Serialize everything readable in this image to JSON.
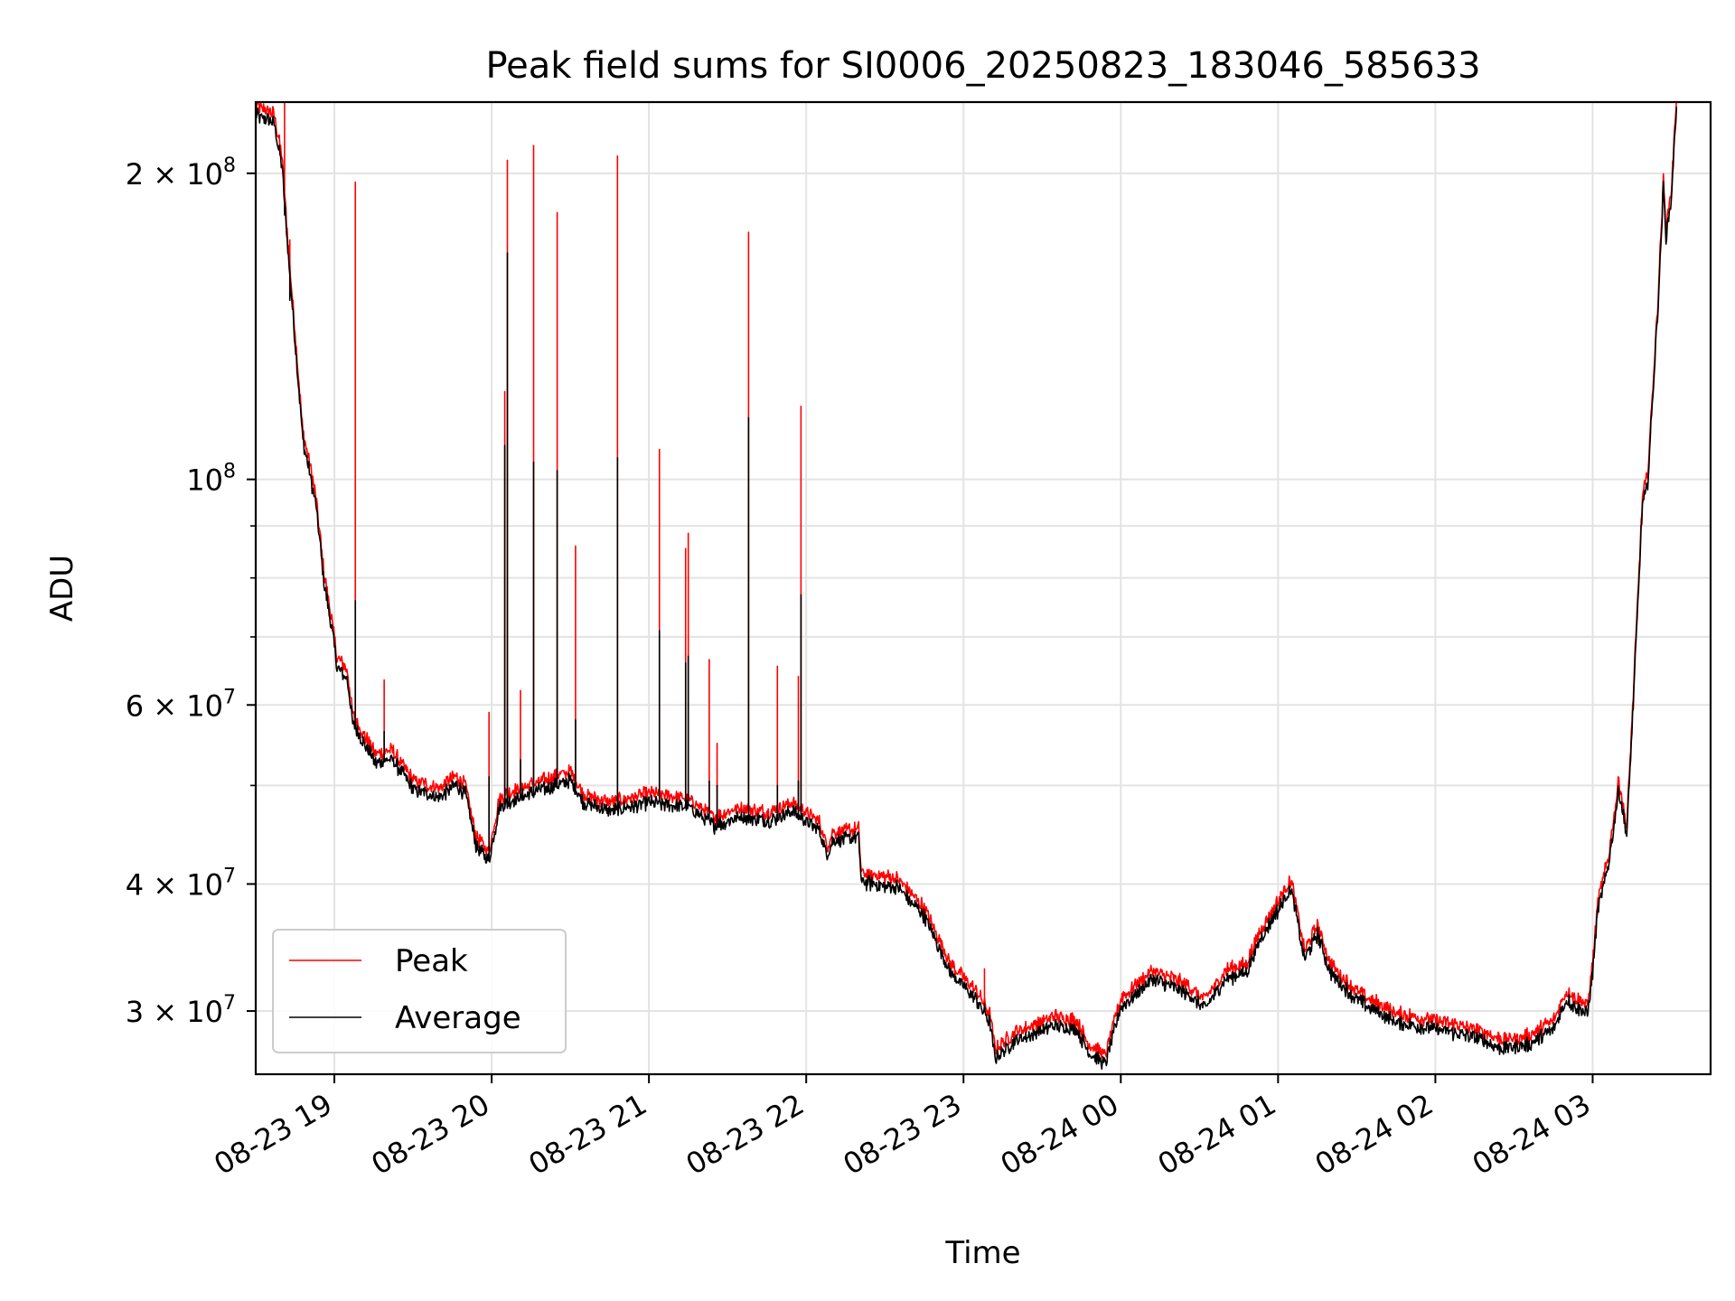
{
  "chart_data": {
    "type": "line",
    "title": "Peak field sums for SI0006_20250823_183046_585633",
    "xlabel": "Time",
    "ylabel": "ADU",
    "yscale": "log",
    "xlim": [
      "2025-08-23 18:30",
      "2025-08-24 03:45"
    ],
    "ylim": [
      26000000,
      235000000
    ],
    "xticks": [
      {
        "time": "2025-08-23 19:00",
        "label": "08-23 19"
      },
      {
        "time": "2025-08-23 20:00",
        "label": "08-23 20"
      },
      {
        "time": "2025-08-23 21:00",
        "label": "08-23 21"
      },
      {
        "time": "2025-08-23 22:00",
        "label": "08-23 22"
      },
      {
        "time": "2025-08-23 23:00",
        "label": "08-23 23"
      },
      {
        "time": "2025-08-24 00:00",
        "label": "08-24 00"
      },
      {
        "time": "2025-08-24 01:00",
        "label": "08-24 01"
      },
      {
        "time": "2025-08-24 02:00",
        "label": "08-24 02"
      },
      {
        "time": "2025-08-24 03:00",
        "label": "08-24 03"
      }
    ],
    "yticks": [
      {
        "value": 30000000,
        "label": "3 × 10",
        "exp": "7"
      },
      {
        "value": 40000000,
        "label": "4 × 10",
        "exp": "7"
      },
      {
        "value": 60000000,
        "label": "6 × 10",
        "exp": "7"
      },
      {
        "value": 100000000,
        "label": "10",
        "exp": "8"
      },
      {
        "value": 200000000,
        "label": "2 × 10",
        "exp": "8"
      }
    ],
    "yminor": [
      50000000,
      70000000,
      80000000,
      90000000
    ],
    "grid": true,
    "legend_position": "lower-left",
    "series": [
      {
        "name": "Peak",
        "color": "#ff0000",
        "points": [
          [
            "2025-08-23 18:30",
            230000000
          ],
          [
            "2025-08-23 18:37",
            226000000
          ],
          [
            "2025-08-23 18:40",
            205000000
          ],
          [
            "2025-08-23 18:43",
            160000000
          ],
          [
            "2025-08-23 18:45",
            138000000
          ],
          [
            "2025-08-23 18:48",
            110000000
          ],
          [
            "2025-08-23 18:50",
            104000000
          ],
          [
            "2025-08-23 18:53",
            95000000
          ],
          [
            "2025-08-23 18:56",
            80000000
          ],
          [
            "2025-08-23 18:59",
            72000000
          ],
          [
            "2025-08-23 19:01",
            66000000
          ],
          [
            "2025-08-23 19:05",
            64000000
          ],
          [
            "2025-08-23 19:07",
            58000000
          ],
          [
            "2025-08-23 19:12",
            55000000
          ],
          [
            "2025-08-23 19:16",
            53000000
          ],
          [
            "2025-08-23 19:22",
            53500000
          ],
          [
            "2025-08-23 19:30",
            50000000
          ],
          [
            "2025-08-23 19:40",
            49000000
          ],
          [
            "2025-08-23 19:46",
            50500000
          ],
          [
            "2025-08-23 19:50",
            49500000
          ],
          [
            "2025-08-23 19:54",
            44000000
          ],
          [
            "2025-08-23 19:59",
            42500000
          ],
          [
            "2025-08-23 20:03",
            48000000
          ],
          [
            "2025-08-23 20:10",
            49000000
          ],
          [
            "2025-08-23 20:20",
            50000000
          ],
          [
            "2025-08-23 20:30",
            51000000
          ],
          [
            "2025-08-23 20:35",
            48500000
          ],
          [
            "2025-08-23 20:45",
            47500000
          ],
          [
            "2025-08-23 21:00",
            48500000
          ],
          [
            "2025-08-23 21:15",
            48000000
          ],
          [
            "2025-08-23 21:25",
            46000000
          ],
          [
            "2025-08-23 21:35",
            47000000
          ],
          [
            "2025-08-23 21:45",
            46500000
          ],
          [
            "2025-08-23 21:55",
            47500000
          ],
          [
            "2025-08-23 22:05",
            45500000
          ],
          [
            "2025-08-23 22:08",
            43000000
          ],
          [
            "2025-08-23 22:10",
            44500000
          ],
          [
            "2025-08-23 22:20",
            44800000
          ],
          [
            "2025-08-23 22:21",
            40500000
          ],
          [
            "2025-08-23 22:35",
            40000000
          ],
          [
            "2025-08-23 22:45",
            37500000
          ],
          [
            "2025-08-23 22:55",
            33000000
          ],
          [
            "2025-08-23 23:05",
            31000000
          ],
          [
            "2025-08-23 23:10",
            29500000
          ],
          [
            "2025-08-23 23:12",
            27200000
          ],
          [
            "2025-08-23 23:20",
            28300000
          ],
          [
            "2025-08-23 23:35",
            29300000
          ],
          [
            "2025-08-23 23:43",
            29000000
          ],
          [
            "2025-08-23 23:48",
            27500000
          ],
          [
            "2025-08-23 23:54",
            26800000
          ],
          [
            "2025-08-24 00:00",
            30500000
          ],
          [
            "2025-08-24 00:12",
            32500000
          ],
          [
            "2025-08-24 00:25",
            31500000
          ],
          [
            "2025-08-24 00:32",
            30400000
          ],
          [
            "2025-08-24 00:40",
            32500000
          ],
          [
            "2025-08-24 00:48",
            33000000
          ],
          [
            "2025-08-24 00:53",
            35500000
          ],
          [
            "2025-08-24 01:00",
            38000000
          ],
          [
            "2025-08-24 01:05",
            40000000
          ],
          [
            "2025-08-24 01:10",
            34000000
          ],
          [
            "2025-08-24 01:15",
            36000000
          ],
          [
            "2025-08-24 01:20",
            33000000
          ],
          [
            "2025-08-24 01:30",
            31000000
          ],
          [
            "2025-08-24 01:45",
            29500000
          ],
          [
            "2025-08-24 02:00",
            29000000
          ],
          [
            "2025-08-24 02:15",
            28500000
          ],
          [
            "2025-08-24 02:25",
            27800000
          ],
          [
            "2025-08-24 02:35",
            28000000
          ],
          [
            "2025-08-24 02:45",
            29000000
          ],
          [
            "2025-08-24 02:50",
            31000000
          ],
          [
            "2025-08-24 02:58",
            30000000
          ],
          [
            "2025-08-24 03:00",
            33000000
          ],
          [
            "2025-08-24 03:02",
            38000000
          ],
          [
            "2025-08-24 03:06",
            42000000
          ],
          [
            "2025-08-24 03:10",
            50000000
          ],
          [
            "2025-08-24 03:13",
            45000000
          ],
          [
            "2025-08-24 03:15",
            57000000
          ],
          [
            "2025-08-24 03:19",
            95000000
          ],
          [
            "2025-08-24 03:21",
            100000000
          ],
          [
            "2025-08-24 03:25",
            150000000
          ],
          [
            "2025-08-24 03:27",
            195000000
          ],
          [
            "2025-08-24 03:28",
            175000000
          ],
          [
            "2025-08-24 03:30",
            190000000
          ],
          [
            "2025-08-24 03:32",
            235000000
          ]
        ],
        "spikes": [
          [
            "2025-08-23 18:41",
            235000000
          ],
          [
            "2025-08-23 18:43",
            172000000
          ],
          [
            "2025-08-23 19:08",
            196000000
          ],
          [
            "2025-08-23 19:19",
            63500000
          ],
          [
            "2025-08-23 19:59",
            59000000
          ],
          [
            "2025-08-23 20:05",
            122000000
          ],
          [
            "2025-08-23 20:06",
            206000000
          ],
          [
            "2025-08-23 20:11",
            62000000
          ],
          [
            "2025-08-23 20:16",
            213000000
          ],
          [
            "2025-08-23 20:25",
            183000000
          ],
          [
            "2025-08-23 20:32",
            86000000
          ],
          [
            "2025-08-23 20:48",
            208000000
          ],
          [
            "2025-08-23 21:04",
            107000000
          ],
          [
            "2025-08-23 21:14",
            85500000
          ],
          [
            "2025-08-23 21:15",
            88500000
          ],
          [
            "2025-08-23 21:23",
            66500000
          ],
          [
            "2025-08-23 21:26",
            55000000
          ],
          [
            "2025-08-23 21:38",
            175000000
          ],
          [
            "2025-08-23 21:49",
            65500000
          ],
          [
            "2025-08-23 21:57",
            64000000
          ],
          [
            "2025-08-23 21:58",
            118000000
          ],
          [
            "2025-08-23 23:08",
            33000000
          ]
        ]
      },
      {
        "name": "Average",
        "color": "#000000",
        "spikes": [
          [
            "2025-08-23 18:41",
            182000000
          ],
          [
            "2025-08-23 18:43",
            150000000
          ],
          [
            "2025-08-23 19:08",
            76000000
          ],
          [
            "2025-08-23 19:19",
            56500000
          ],
          [
            "2025-08-23 19:59",
            51000000
          ],
          [
            "2025-08-23 20:05",
            108000000
          ],
          [
            "2025-08-23 20:06",
            167000000
          ],
          [
            "2025-08-23 20:11",
            53000000
          ],
          [
            "2025-08-23 20:16",
            104000000
          ],
          [
            "2025-08-23 20:25",
            102000000
          ],
          [
            "2025-08-23 20:32",
            58000000
          ],
          [
            "2025-08-23 20:48",
            105000000
          ],
          [
            "2025-08-23 21:04",
            71000000
          ],
          [
            "2025-08-23 21:14",
            66000000
          ],
          [
            "2025-08-23 21:15",
            67000000
          ],
          [
            "2025-08-23 21:23",
            50500000
          ],
          [
            "2025-08-23 21:26",
            50000000
          ],
          [
            "2025-08-23 21:38",
            115000000
          ],
          [
            "2025-08-23 21:49",
            50000000
          ],
          [
            "2025-08-23 21:57",
            50500000
          ],
          [
            "2025-08-23 21:58",
            77000000
          ],
          [
            "2025-08-23 23:08",
            30500000
          ]
        ]
      }
    ]
  }
}
